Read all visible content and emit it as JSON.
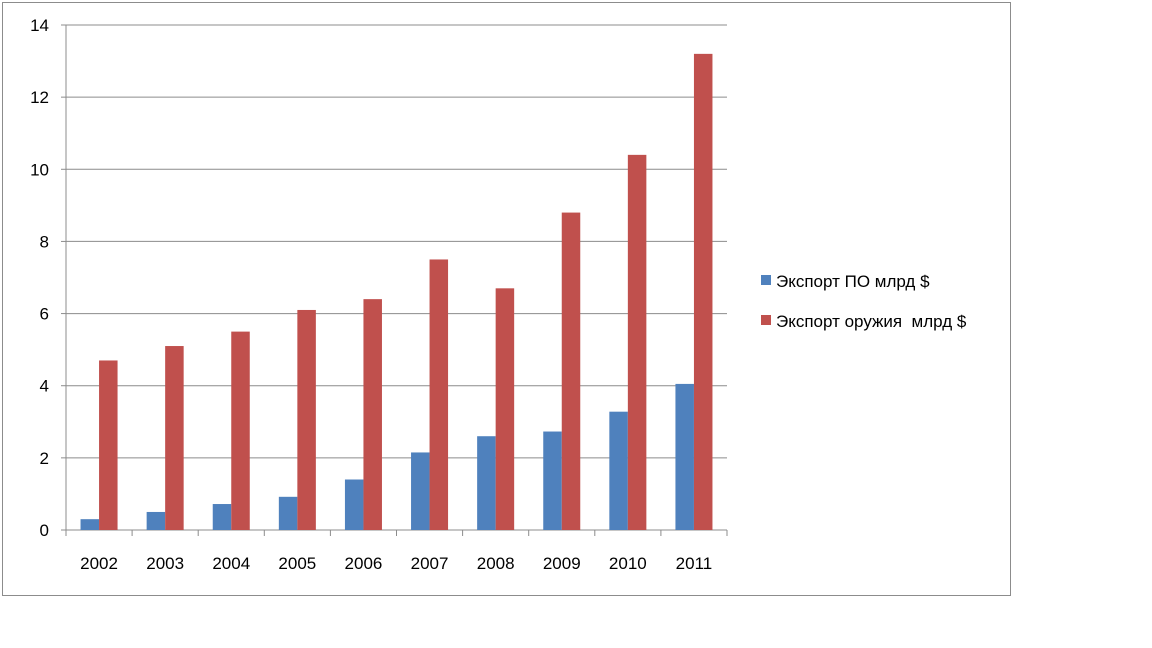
{
  "chart_data": {
    "type": "bar",
    "title": "",
    "xlabel": "",
    "ylabel": "",
    "categories": [
      "2002",
      "2003",
      "2004",
      "2005",
      "2006",
      "2007",
      "2008",
      "2009",
      "2010",
      "2011"
    ],
    "series": [
      {
        "name": "Экспорт ПО млрд $",
        "color": "#4f81bd",
        "values": [
          0.3,
          0.5,
          0.72,
          0.92,
          1.4,
          2.15,
          2.6,
          2.73,
          3.28,
          4.05
        ]
      },
      {
        "name": "Экспорт оружия  млрд $",
        "color": "#c0504d",
        "values": [
          4.7,
          5.1,
          5.5,
          6.1,
          6.4,
          7.5,
          6.7,
          8.8,
          10.4,
          13.2
        ]
      }
    ],
    "ylim": [
      0,
      14
    ],
    "yticks": [
      0,
      2,
      4,
      6,
      8,
      10,
      12,
      14
    ],
    "grid": true,
    "legend_position": "right"
  }
}
